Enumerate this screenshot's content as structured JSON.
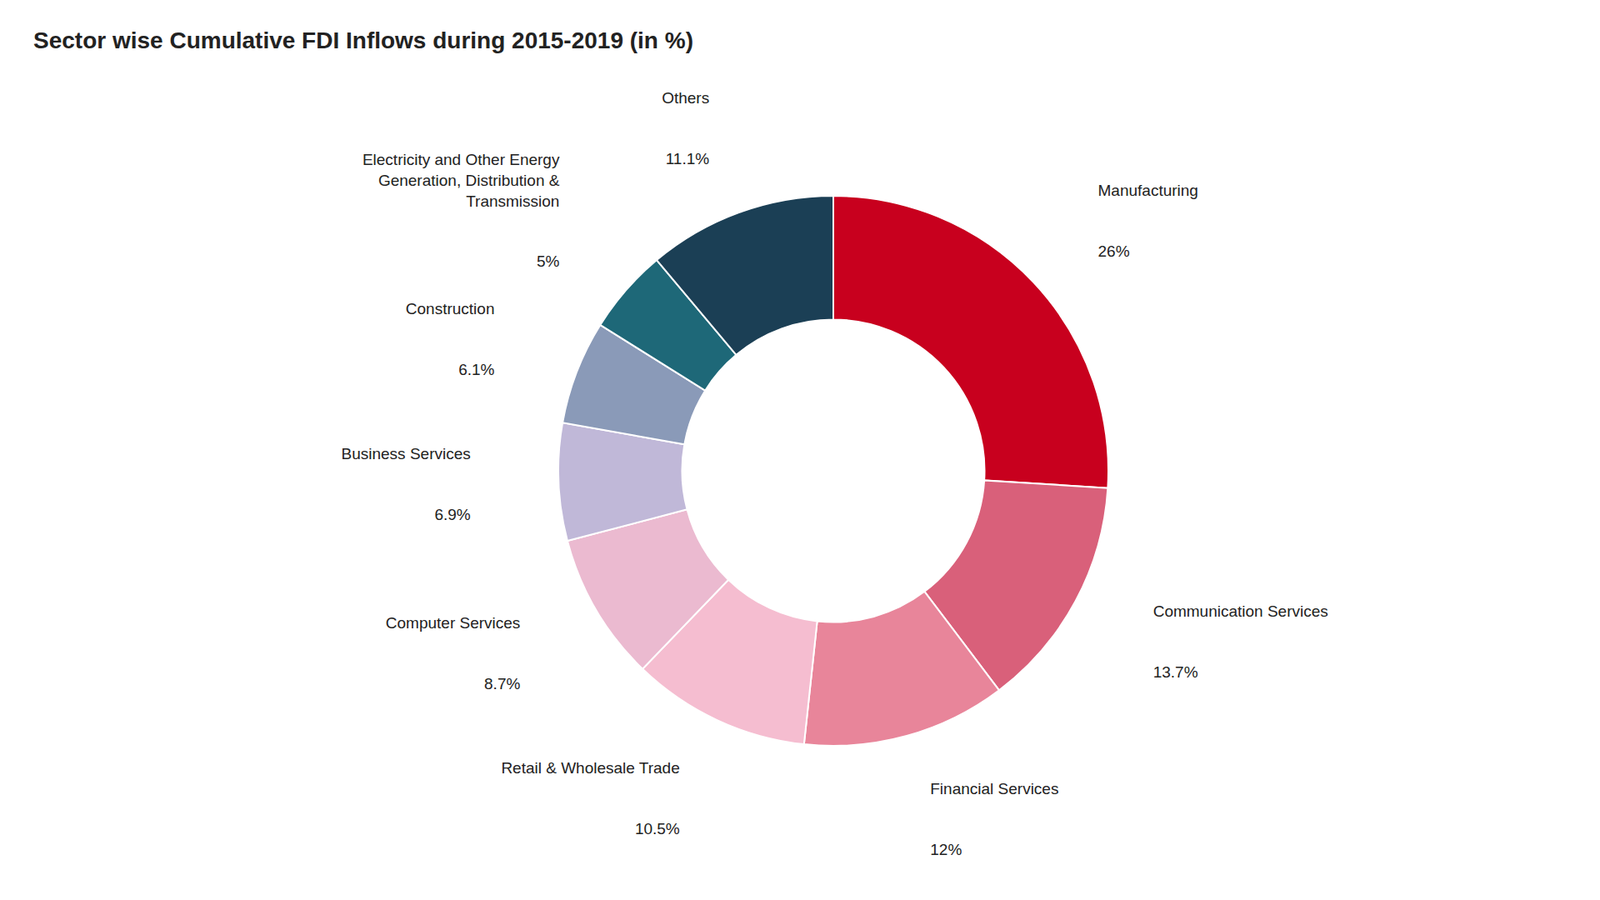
{
  "chart_data": {
    "type": "donut",
    "title": "Sector wise Cumulative FDI Inflows during 2015-2019 (in %)",
    "categories": [
      "Manufacturing",
      "Communication Services",
      "Financial Services",
      "Retail & Wholesale Trade",
      "Computer Services",
      "Business Services",
      "Construction",
      "Electricity and Other Energy\nGeneration, Distribution &\nTransmission",
      "Others"
    ],
    "values": [
      26,
      13.7,
      12,
      10.5,
      8.7,
      6.9,
      6.1,
      5,
      11.1
    ],
    "value_labels": [
      "26%",
      "13.7%",
      "12%",
      "10.5%",
      "8.7%",
      "6.9%",
      "6.1%",
      "5%",
      "11.1%"
    ],
    "data_labels": true,
    "colors": [
      "#C8001E",
      "#D9607A",
      "#E8859A",
      "#F5BDD0",
      "#EBBAD0",
      "#C0B8D8",
      "#8A9AB8",
      "#1E6878",
      "#1B3F55"
    ]
  }
}
